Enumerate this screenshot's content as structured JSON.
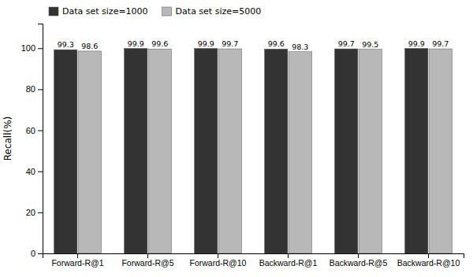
{
  "chart_data": {
    "type": "bar",
    "categories": [
      "Forward-R@1",
      "Forward-R@5",
      "Forward-R@10",
      "Backward-R@1",
      "Backward-R@5",
      "Backward-R@10"
    ],
    "series": [
      {
        "name": "Data set size=1000",
        "color": "#333333",
        "values": [
          99.3,
          99.9,
          99.9,
          99.6,
          99.7,
          99.9
        ]
      },
      {
        "name": "Data set size=5000",
        "color": "#b8b8b8",
        "values": [
          98.6,
          99.6,
          99.7,
          98.3,
          99.5,
          99.7
        ]
      }
    ],
    "ylabel": "Recall(%)",
    "ylim": [
      0,
      112
    ],
    "yticks": [
      0,
      20,
      40,
      60,
      80,
      100
    ],
    "data_labels": true,
    "legend": "upper left",
    "grid": false
  }
}
